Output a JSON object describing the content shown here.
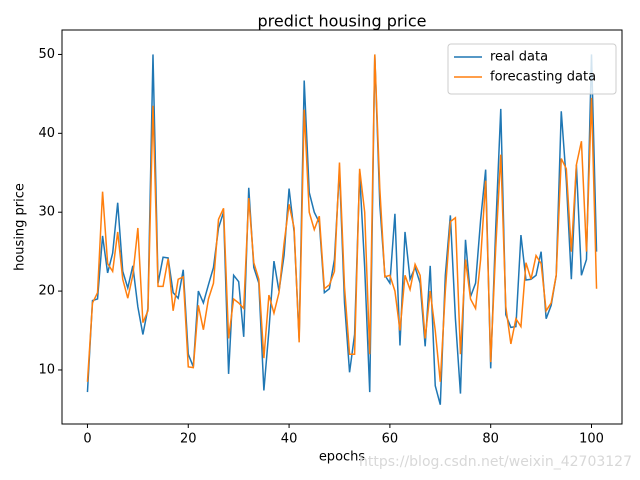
{
  "chart_data": {
    "type": "line",
    "title": "predict housing price",
    "xlabel": "epochs",
    "ylabel": "housing price",
    "watermark": "https://blog.csdn.net/weixin_42703127",
    "legend": "upper right",
    "x": [
      0,
      1,
      2,
      3,
      4,
      5,
      6,
      7,
      8,
      9,
      10,
      11,
      12,
      13,
      14,
      15,
      16,
      17,
      18,
      19,
      20,
      21,
      22,
      23,
      24,
      25,
      26,
      27,
      28,
      29,
      30,
      31,
      32,
      33,
      34,
      35,
      36,
      37,
      38,
      39,
      40,
      41,
      42,
      43,
      44,
      45,
      46,
      47,
      48,
      49,
      50,
      51,
      52,
      53,
      54,
      55,
      56,
      57,
      58,
      59,
      60,
      61,
      62,
      63,
      64,
      65,
      66,
      67,
      68,
      69,
      70,
      71,
      72,
      73,
      74,
      75,
      76,
      77,
      78,
      79,
      80,
      81,
      82,
      83,
      84,
      85,
      86,
      87,
      88,
      89,
      90,
      91,
      92,
      93,
      94,
      95,
      96,
      97,
      98,
      99,
      100,
      101
    ],
    "xlim": [
      -5.05,
      106.05
    ],
    "xticks": [
      0,
      20,
      40,
      60,
      80,
      100
    ],
    "ylim": [
      3.15,
      53.1
    ],
    "yticks": [
      10,
      20,
      30,
      40,
      50
    ],
    "series": [
      {
        "name": "real data",
        "color": "#1f77b4",
        "values": [
          7.2,
          18.8,
          19.0,
          27.0,
          22.3,
          24.8,
          31.2,
          22.5,
          20.4,
          23.2,
          18.0,
          14.5,
          17.8,
          50.0,
          21.0,
          24.3,
          24.2,
          19.8,
          19.1,
          22.7,
          12.0,
          10.4,
          20.0,
          18.5,
          20.8,
          23.0,
          28.0,
          30.0,
          9.5,
          22.0,
          21.2,
          14.2,
          33.1,
          23.0,
          21.0,
          7.4,
          15.0,
          23.8,
          20.0,
          24.5,
          33.0,
          27.5,
          14.0,
          46.7,
          32.5,
          30.0,
          28.7,
          19.8,
          20.3,
          24.0,
          35.4,
          18.5,
          9.7,
          14.5,
          34.9,
          23.0,
          7.2,
          50.0,
          31.0,
          22.0,
          21.0,
          29.8,
          13.1,
          27.5,
          21.5,
          23.0,
          21.0,
          13.0,
          23.2,
          8.0,
          5.6,
          22.0,
          29.6,
          16.5,
          7.0,
          26.5,
          19.3,
          21.0,
          29.0,
          35.4,
          10.2,
          28.0,
          43.1,
          17.0,
          15.4,
          15.5,
          27.1,
          21.4,
          21.5,
          22.0,
          25.0,
          16.5,
          18.2,
          22.0,
          42.8,
          34.0,
          21.5,
          36.0,
          22.0,
          24.0,
          50.0,
          25.0
        ]
      },
      {
        "name": "forecasting data",
        "color": "#ff7f0e",
        "values": [
          8.5,
          18.5,
          19.8,
          32.6,
          23.5,
          22.5,
          27.5,
          21.5,
          19.1,
          22.0,
          28.0,
          16.0,
          17.5,
          43.5,
          20.6,
          20.6,
          24.1,
          17.5,
          21.5,
          21.8,
          10.4,
          10.3,
          18.2,
          15.1,
          19.0,
          21.0,
          29.1,
          30.5,
          14.0,
          19.0,
          18.5,
          17.8,
          31.8,
          23.6,
          21.5,
          11.5,
          19.5,
          17.2,
          19.8,
          26.0,
          31.0,
          28.0,
          13.5,
          43.0,
          30.0,
          27.8,
          29.5,
          20.3,
          20.8,
          22.5,
          36.3,
          20.5,
          12.0,
          12.0,
          35.5,
          30.0,
          12.0,
          50.0,
          33.0,
          21.8,
          22.0,
          20.0,
          15.0,
          22.0,
          20.2,
          23.4,
          22.0,
          14.0,
          20.0,
          15.0,
          8.5,
          20.0,
          28.8,
          29.3,
          12.0,
          24.0,
          19.0,
          17.8,
          24.0,
          34.0,
          11.0,
          25.5,
          37.3,
          18.0,
          13.3,
          16.5,
          15.5,
          23.6,
          21.5,
          24.5,
          23.5,
          17.5,
          18.5,
          22.0,
          36.8,
          35.5,
          25.0,
          36.0,
          39.0,
          25.0,
          44.5,
          20.3
        ]
      }
    ]
  }
}
